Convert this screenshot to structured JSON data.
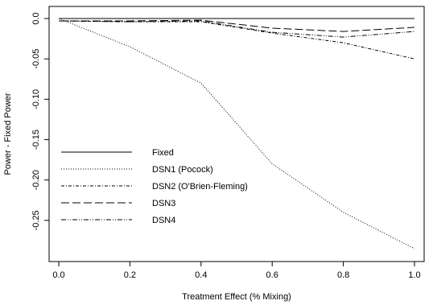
{
  "chart_data": {
    "type": "line",
    "title": "",
    "xlabel": "Treatment Effect (% Mixing)",
    "ylabel": "Power - Fixed Power",
    "xlim": [
      0.0,
      1.0
    ],
    "ylim": [
      -0.29,
      0.002
    ],
    "xticks": [
      "0.0",
      "0.2",
      "0.4",
      "0.6",
      "0.8",
      "1.0"
    ],
    "yticks": [
      "0.0",
      "-0.05",
      "-0.10",
      "-0.15",
      "-0.20",
      "-0.25"
    ],
    "grid": false,
    "legend_position": "center-left",
    "x": [
      0.0,
      0.2,
      0.4,
      0.6,
      0.8,
      1.0
    ],
    "series": [
      {
        "name": "Fixed",
        "dash": "solid",
        "values": [
          0.0,
          0.0,
          0.0,
          0.0,
          0.0,
          0.0
        ]
      },
      {
        "name": "DSN1 (Pocock)",
        "dash": "dotted",
        "values": [
          0.0,
          -0.035,
          -0.08,
          -0.18,
          -0.24,
          -0.285
        ]
      },
      {
        "name": "DSN2 (O'Brien-Fleming)",
        "dash": "dashdot",
        "values": [
          -0.003,
          -0.004,
          -0.004,
          -0.018,
          -0.03,
          -0.05
        ]
      },
      {
        "name": "DSN3",
        "dash": "longdash",
        "values": [
          -0.003,
          -0.003,
          -0.002,
          -0.012,
          -0.016,
          -0.011
        ]
      },
      {
        "name": "DSN4",
        "dash": "twodash",
        "values": [
          -0.003,
          -0.004,
          -0.003,
          -0.017,
          -0.023,
          -0.016
        ]
      }
    ]
  }
}
